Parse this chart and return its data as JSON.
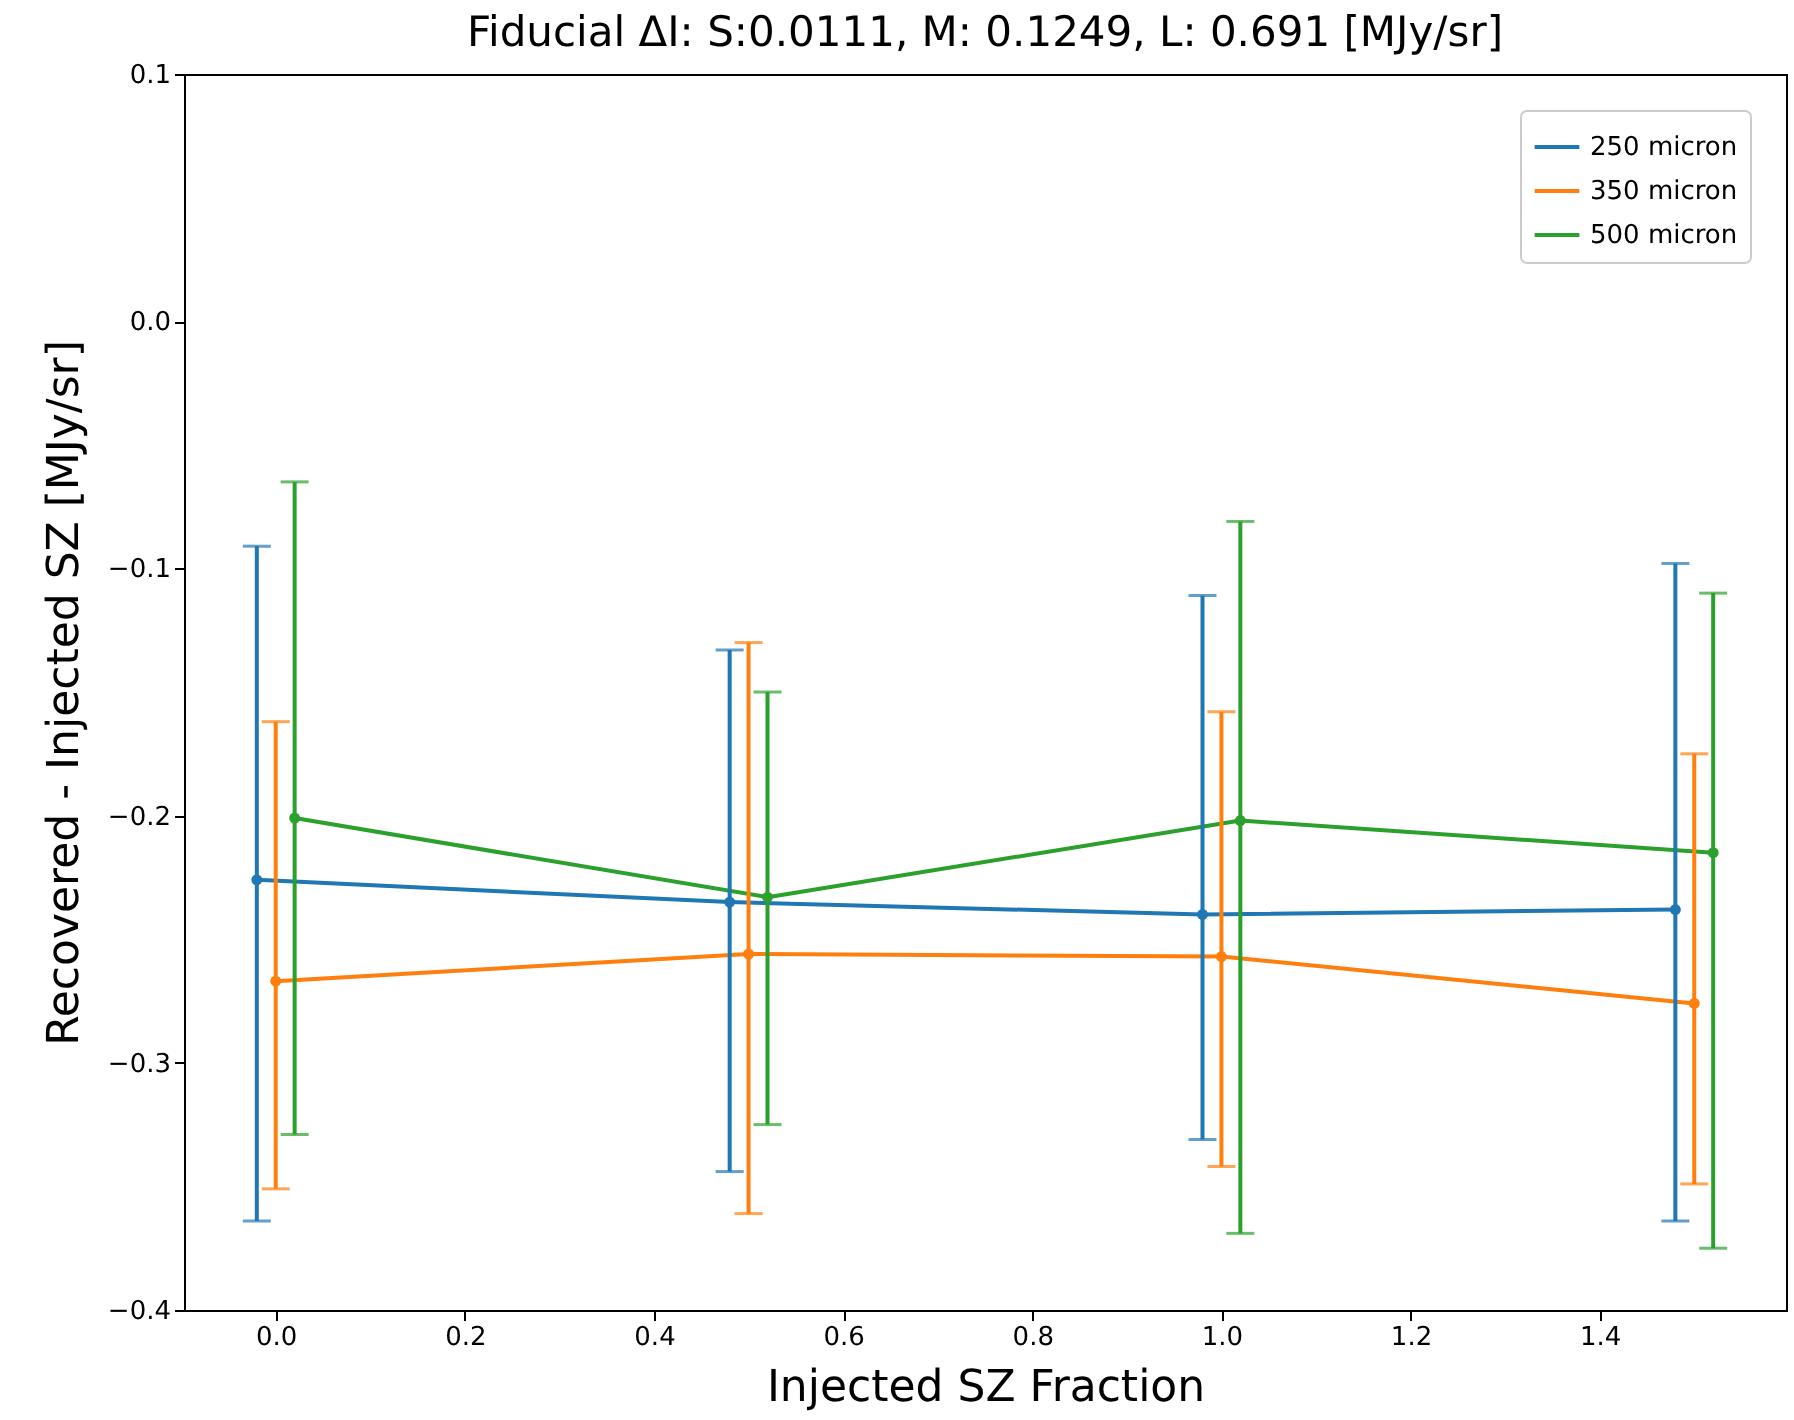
{
  "chart_data": {
    "type": "line",
    "title": "Fiducial ΔI: S:0.0111, M: 0.1249, L: 0.691 [MJy/sr]",
    "xlabel": "Injected SZ Fraction",
    "ylabel": "Recovered - Injected SZ [MJy/sr]",
    "xlim": [
      -0.097,
      1.597
    ],
    "ylim": [
      -0.4,
      0.1
    ],
    "xticks": [
      {
        "value": 0.0,
        "label": "0.0"
      },
      0.2,
      0.4,
      0.6,
      0.8,
      {
        "value": 1.0,
        "label": "1.0"
      },
      1.2,
      1.4
    ],
    "yticks": [
      {
        "value": -0.4,
        "label": "−0.4"
      },
      {
        "value": -0.3,
        "label": "−0.3"
      },
      {
        "value": -0.2,
        "label": "−0.2"
      },
      {
        "value": -0.1,
        "label": "−0.1"
      },
      {
        "value": 0.0,
        "label": "0.0"
      },
      {
        "value": 0.1,
        "label": "0.1"
      }
    ],
    "grid": false,
    "legend": "top right",
    "marker": "circle",
    "line_style": "solid",
    "series": [
      {
        "name": "250 micron",
        "color": "#1f77b4",
        "x": [
          -0.02,
          0.48,
          0.98,
          1.48
        ],
        "values": [
          -0.226,
          -0.235,
          -0.24,
          -0.238
        ],
        "errors": [
          [
            -0.364,
            -0.091
          ],
          [
            -0.344,
            -0.133
          ],
          [
            -0.331,
            -0.111
          ],
          [
            -0.364,
            -0.098
          ]
        ]
      },
      {
        "name": "350 micron",
        "color": "#ff7f0e",
        "x": [
          0.0,
          0.5,
          1.0,
          1.5
        ],
        "values": [
          -0.267,
          -0.256,
          -0.257,
          -0.276
        ],
        "errors": [
          [
            -0.351,
            -0.162
          ],
          [
            -0.361,
            -0.13
          ],
          [
            -0.342,
            -0.158
          ],
          [
            -0.349,
            -0.175
          ]
        ]
      },
      {
        "name": "500 micron",
        "color": "#2ca02c",
        "x": [
          0.02,
          0.52,
          1.02,
          1.52
        ],
        "values": [
          -0.201,
          -0.233,
          -0.202,
          -0.215
        ],
        "errors": [
          [
            -0.329,
            -0.065
          ],
          [
            -0.325,
            -0.15
          ],
          [
            -0.369,
            -0.081
          ],
          [
            -0.375,
            -0.11
          ]
        ]
      }
    ]
  }
}
